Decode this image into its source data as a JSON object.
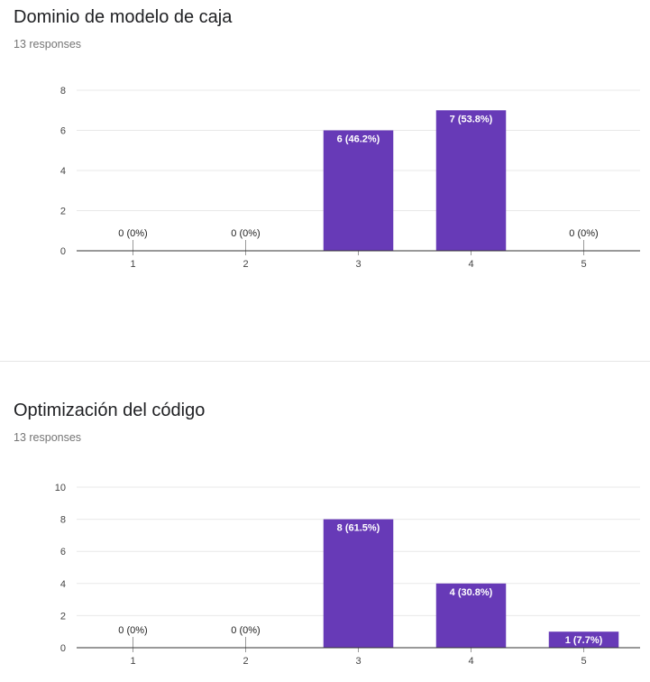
{
  "questions": [
    {
      "title": "Dominio de modelo de caja",
      "subtitle": "13 responses"
    },
    {
      "title": "Optimización del código",
      "subtitle": "13 responses"
    }
  ],
  "colors": {
    "bar": "#673ab7",
    "grid": "#e8e8e8",
    "axis": "#333333"
  },
  "chart_data": [
    {
      "type": "bar",
      "title": "Dominio de modelo de caja",
      "categories": [
        "1",
        "2",
        "3",
        "4",
        "5"
      ],
      "values": [
        0,
        0,
        6,
        7,
        0
      ],
      "data_labels": [
        "0 (0%)",
        "0 (0%)",
        "6 (46.2%)",
        "7 (53.8%)",
        "0 (0%)"
      ],
      "y_ticks": [
        "0",
        "2",
        "4",
        "6",
        "8"
      ],
      "ylim": [
        0,
        8
      ],
      "grid": true
    },
    {
      "type": "bar",
      "title": "Optimización del código",
      "categories": [
        "1",
        "2",
        "3",
        "4",
        "5"
      ],
      "values": [
        0,
        0,
        8,
        4,
        1
      ],
      "data_labels": [
        "0 (0%)",
        "0 (0%)",
        "8 (61.5%)",
        "4 (30.8%)",
        "1 (7.7%)"
      ],
      "y_ticks": [
        "0",
        "2",
        "4",
        "6",
        "8",
        "10"
      ],
      "ylim": [
        0,
        10
      ],
      "grid": true
    }
  ]
}
